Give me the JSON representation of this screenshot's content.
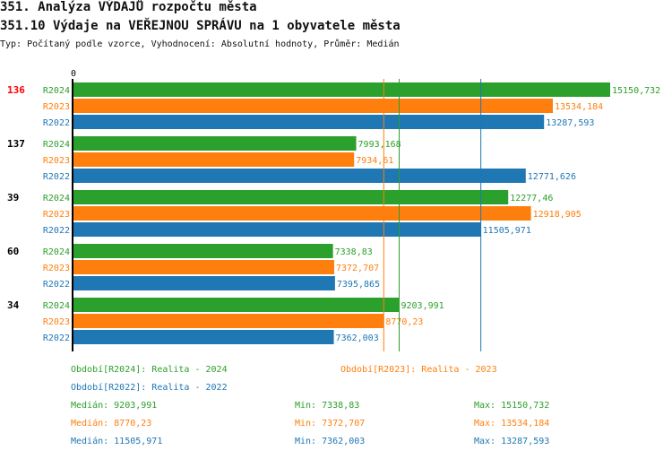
{
  "title": "351. Analýza VÝDAJŮ rozpočtu města",
  "subtitle": "351.10 Výdaje na VEŘEJNOU SPRÁVU na 1 obyvatele města",
  "type_line": "Typ: Počítaný podle vzorce, Vyhodnocení: Absolutní hodnoty, Průměr: Medián",
  "chart_data": {
    "type": "bar",
    "orientation": "horizontal",
    "axis_zero_label": "0",
    "xlim": [
      0,
      15150.732
    ],
    "groups": [
      {
        "rank": "136",
        "highlight": true,
        "values": [
          "15150,732",
          "13534,184",
          "13287,593"
        ],
        "nums": [
          15150.732,
          13534.184,
          13287.593
        ]
      },
      {
        "rank": "137",
        "highlight": false,
        "values": [
          "7993,168",
          "7934,61",
          "12771,626"
        ],
        "nums": [
          7993.168,
          7934.61,
          12771.626
        ]
      },
      {
        "rank": "39",
        "highlight": false,
        "values": [
          "12277,46",
          "12918,905",
          "11505,971"
        ],
        "nums": [
          12277.46,
          12918.905,
          11505.971
        ]
      },
      {
        "rank": "60",
        "highlight": false,
        "values": [
          "7338,83",
          "7372,707",
          "7395,865"
        ],
        "nums": [
          7338.83,
          7372.707,
          7395.865
        ]
      },
      {
        "rank": "34",
        "highlight": false,
        "values": [
          "9203,991",
          "8770,23",
          "7362,003"
        ],
        "nums": [
          9203.991,
          8770.23,
          7362.003
        ]
      }
    ],
    "series": [
      {
        "name": "R2024",
        "color": "#2ca02c",
        "legend": "Období[R2024]: Realita - 2024",
        "median": 9203.991,
        "median_label": "Medián: 9203,991",
        "min_label": "Min: 7338,83",
        "max_label": "Max: 15150,732"
      },
      {
        "name": "R2023",
        "color": "#ff7f0e",
        "legend": "Období[R2023]: Realita - 2023",
        "median": 8770.23,
        "median_label": "Medián: 8770,23",
        "min_label": "Min: 7372,707",
        "max_label": "Max: 13534,184"
      },
      {
        "name": "R2022",
        "color": "#1f77b4",
        "legend": "Období[R2022]: Realita - 2022",
        "median": 11505.971,
        "median_label": "Medián: 11505,971",
        "min_label": "Min: 7362,003",
        "max_label": "Max: 13287,593"
      }
    ],
    "highlight_color": "#ff0000"
  }
}
